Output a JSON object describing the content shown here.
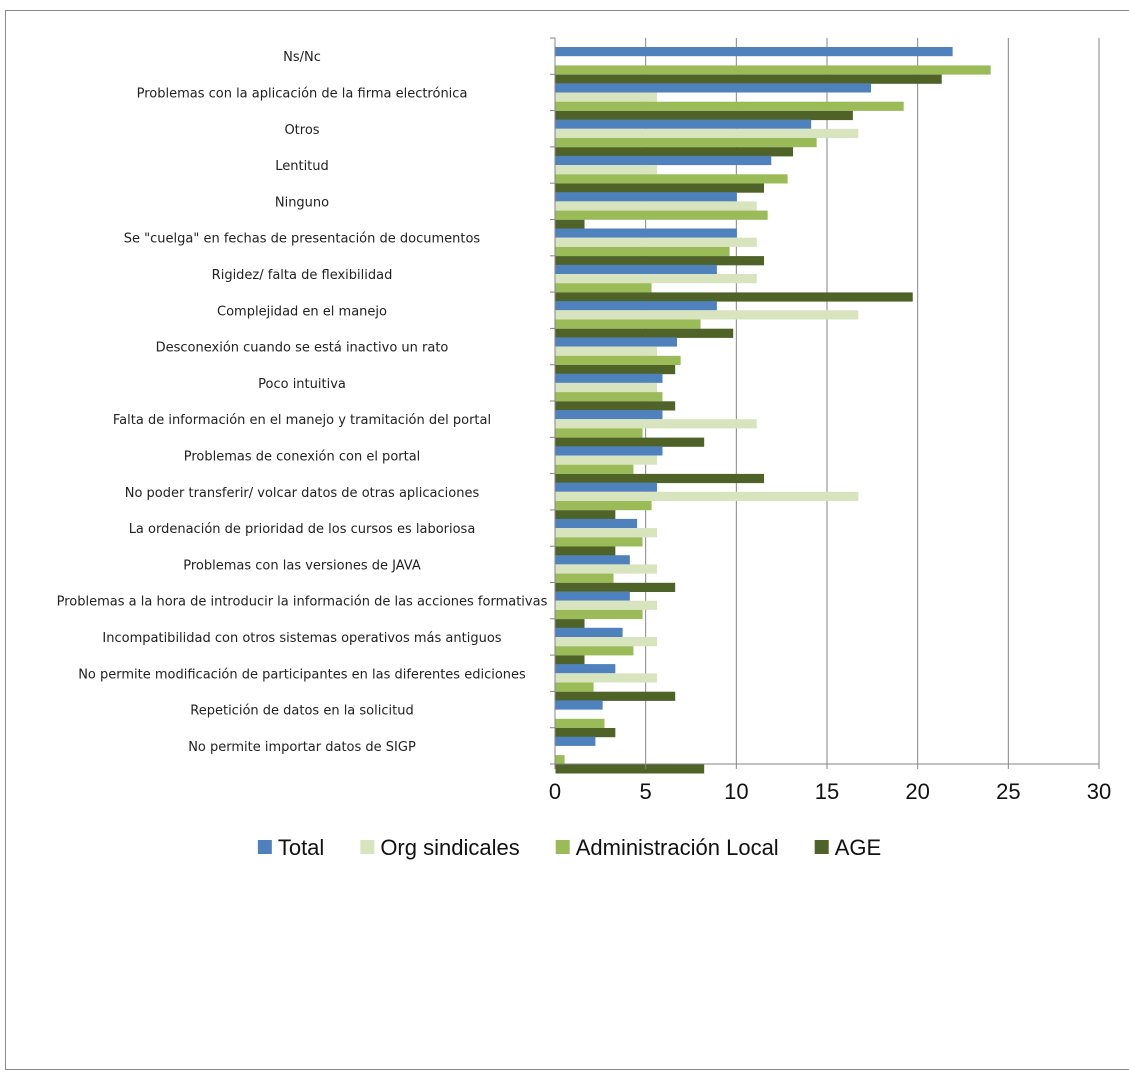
{
  "chart_data": {
    "type": "bar",
    "orientation": "horizontal",
    "categories": [
      "Ns/Nc",
      "Problemas con la aplicación de la firma electrónica",
      "Otros",
      "Lentitud",
      "Ninguno",
      "Se \"cuelga\" en fechas de presentación de documentos",
      "Rigidez/ falta de flexibilidad",
      "Complejidad en el manejo",
      "Desconexión cuando se está inactivo un rato",
      "Poco intuitiva",
      "Falta de información en el manejo y tramitación del portal",
      "Problemas de conexión con el portal",
      "No poder transferir/ volcar datos de otras aplicaciones",
      "La ordenación de prioridad de los cursos es laboriosa",
      "Problemas con las versiones de JAVA",
      "Problemas a la hora de introducir la información de las acciones formativas",
      "Incompatibilidad con otros sistemas operativos más antiguos",
      "No permite modificación de participantes en las diferentes ediciones",
      "Repetición de datos en la solicitud",
      "No permite importar datos de SIGP"
    ],
    "series": [
      {
        "name": "Total",
        "color": "#4f81bd",
        "values": [
          21.9,
          17.4,
          14.1,
          11.9,
          10.0,
          10.0,
          8.9,
          8.9,
          6.7,
          5.9,
          5.9,
          5.9,
          5.6,
          4.5,
          4.1,
          4.1,
          3.7,
          3.3,
          2.6,
          2.2
        ]
      },
      {
        "name": "Org sindicales",
        "color": "#d7e4bd",
        "values": [
          0,
          5.6,
          16.7,
          5.6,
          11.1,
          11.1,
          11.1,
          16.7,
          5.6,
          5.6,
          11.1,
          5.6,
          16.7,
          5.6,
          5.6,
          5.6,
          5.6,
          5.6,
          0,
          0
        ]
      },
      {
        "name": "Administración Local",
        "color": "#9bbb59",
        "values": [
          24.0,
          19.2,
          14.4,
          12.8,
          11.7,
          9.6,
          5.3,
          8.0,
          6.9,
          5.9,
          4.8,
          4.3,
          5.3,
          4.8,
          3.2,
          4.8,
          4.3,
          2.1,
          2.7,
          0.5
        ]
      },
      {
        "name": "AGE",
        "color": "#4f6228",
        "values": [
          21.3,
          16.4,
          13.1,
          11.5,
          1.6,
          11.5,
          19.7,
          9.8,
          6.6,
          6.6,
          8.2,
          11.5,
          3.3,
          3.3,
          6.6,
          1.6,
          1.6,
          6.6,
          3.3,
          8.2
        ]
      }
    ],
    "xlim": [
      0,
      30
    ],
    "ticks": [
      0,
      5,
      10,
      15,
      20,
      25,
      30
    ],
    "grid": true,
    "legend": "bottom"
  }
}
